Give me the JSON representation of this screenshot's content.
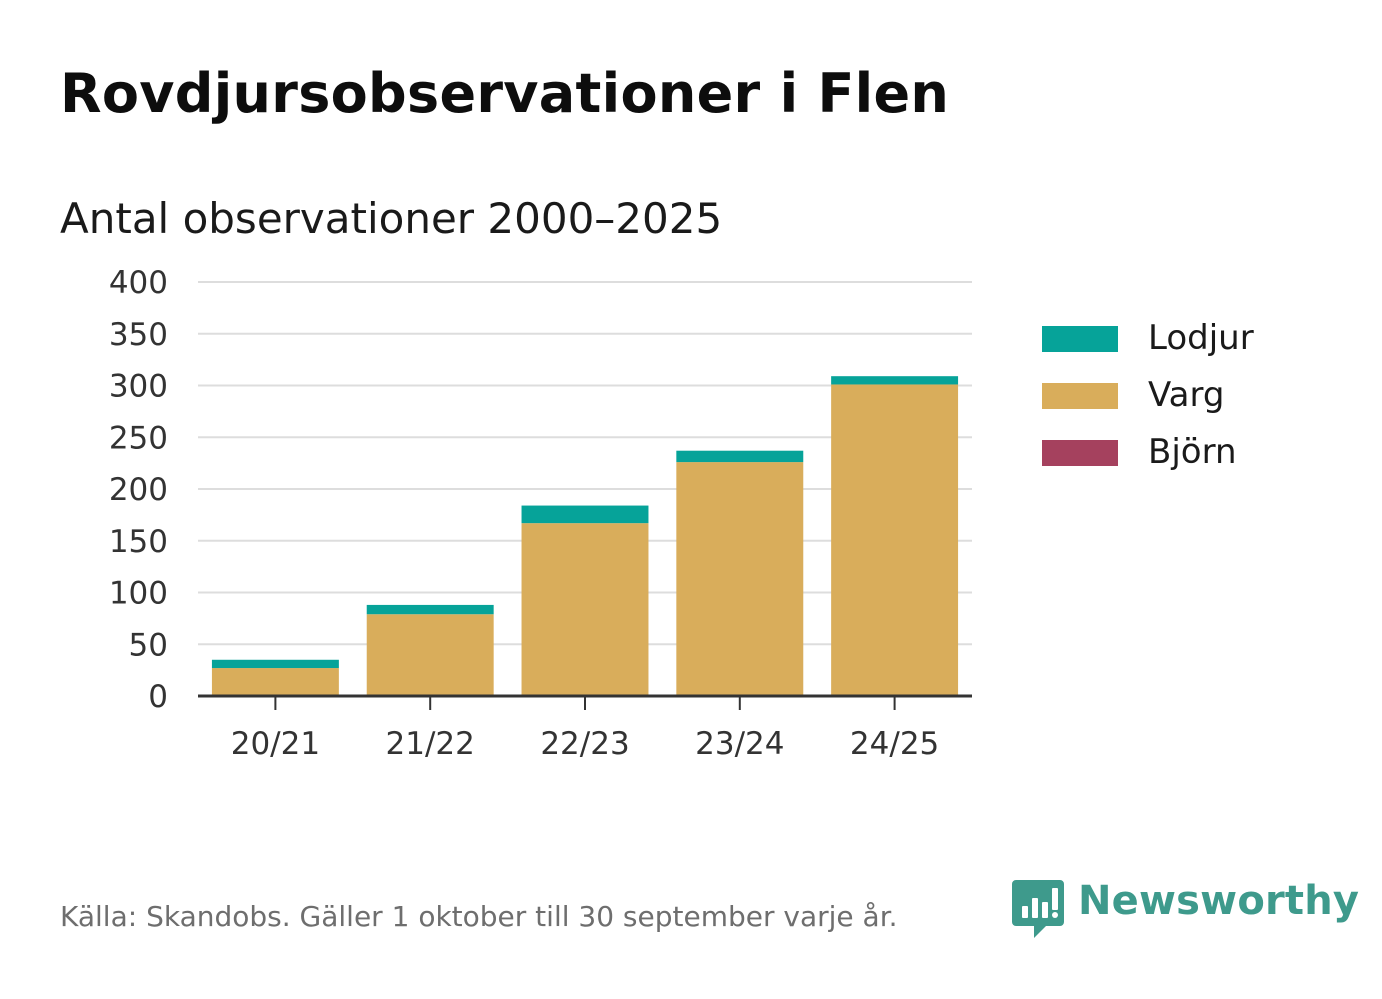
{
  "title": "Rovdjursobservationer i Flen",
  "subtitle": "Antal observationer 2000–2025",
  "footer": "Källa: Skandobs. Gäller 1 oktober till 30 september varje år.",
  "brand": {
    "name": "Newsworthy",
    "icon": "bar-chart-speech-bubble-icon",
    "color": "#3e9a8c"
  },
  "chart_data": {
    "type": "bar",
    "stacked": true,
    "categories": [
      "20/21",
      "21/22",
      "22/23",
      "23/24",
      "24/25"
    ],
    "series": [
      {
        "name": "Björn",
        "color": "#a5415e",
        "values": [
          0,
          0,
          0,
          0,
          0
        ]
      },
      {
        "name": "Varg",
        "color": "#d9ad5b",
        "values": [
          27,
          79,
          167,
          226,
          301
        ]
      },
      {
        "name": "Lodjur",
        "color": "#06a399",
        "values": [
          8,
          9,
          17,
          11,
          8
        ]
      }
    ],
    "legend_order": [
      "Lodjur",
      "Varg",
      "Björn"
    ],
    "legend_position": "right",
    "ylim": [
      0,
      400
    ],
    "yticks": [
      0,
      50,
      100,
      150,
      200,
      250,
      300,
      350,
      400
    ],
    "grid": true,
    "gridline_color": "#dddddd",
    "axis_color": "#333333"
  }
}
